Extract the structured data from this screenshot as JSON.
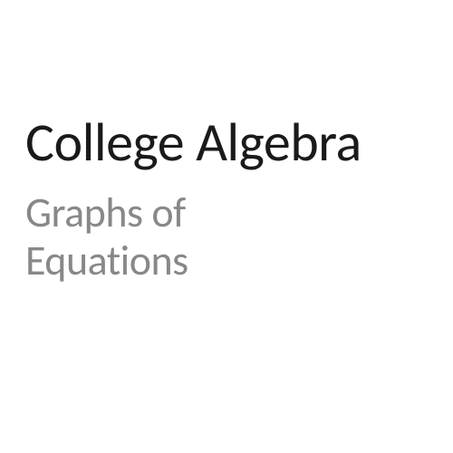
{
  "slide": {
    "title": "College Algebra",
    "subtitle_line1": "Graphs of",
    "subtitle_line2": "Equations",
    "title_color": "#1a1a1a",
    "subtitle_color": "#888888",
    "background_color": "#ffffff",
    "title_fontsize": 60,
    "subtitle_fontsize": 46
  }
}
